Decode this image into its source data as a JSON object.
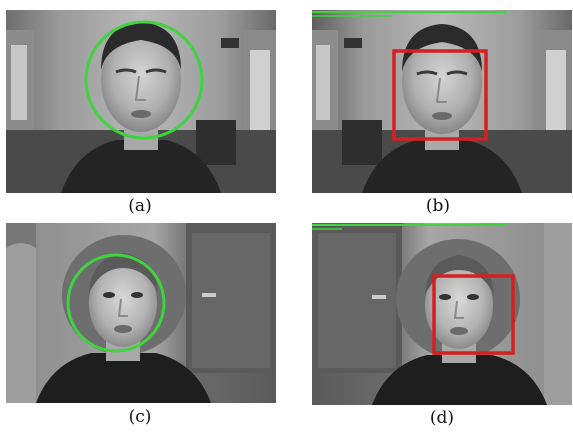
{
  "figure": {
    "panels": [
      {
        "id": "a",
        "caption": "(a)",
        "subject": "man",
        "detector_marker": "circle",
        "marker_color": "#3fd33f"
      },
      {
        "id": "b",
        "caption": "(b)",
        "subject": "man",
        "detector_marker": "square",
        "marker_color": "#d42020"
      },
      {
        "id": "c",
        "caption": "(c)",
        "subject": "woman",
        "detector_marker": "circle",
        "marker_color": "#3fd33f"
      },
      {
        "id": "d",
        "caption": "(d)",
        "subject": "woman",
        "detector_marker": "square",
        "marker_color": "#d42020"
      }
    ],
    "colors": {
      "green": "#3fd33f",
      "red": "#d42020",
      "background": "#ffffff"
    }
  }
}
